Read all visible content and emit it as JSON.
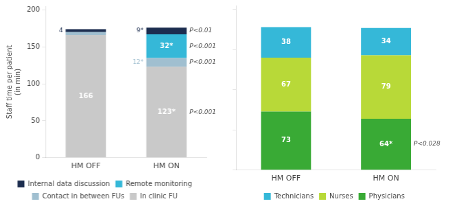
{
  "chart_data": [
    {
      "type": "bar",
      "stacked": true,
      "categories": [
        "HM OFF",
        "HM ON"
      ],
      "ylabel": "Staff time per patient\n(in min)",
      "ylim": [
        0,
        205
      ],
      "yticks": [
        0,
        50,
        100,
        150,
        200
      ],
      "grid": false,
      "legend": "bottom",
      "data_labels": true,
      "series": [
        {
          "name": "In clinic FU",
          "color": "#c9c9c9",
          "values": [
            166,
            123
          ],
          "value_labels": [
            "166",
            "123*"
          ]
        },
        {
          "name": "Contact in between FUs",
          "color": "#a0bfd0",
          "values": [
            4,
            12
          ],
          "value_labels": [
            null,
            "12*"
          ]
        },
        {
          "name": "Remote monitoring",
          "color": "#35b8d8",
          "values": [
            0,
            32
          ],
          "value_labels": [
            null,
            "32*"
          ]
        },
        {
          "name": "Internal data discussion",
          "color": "#1c2d4f",
          "values": [
            4,
            9
          ],
          "value_labels": [
            "4",
            "9*"
          ]
        }
      ],
      "annotations": [
        {
          "text": "P<0.01",
          "category": "HM ON",
          "series": "Internal data discussion"
        },
        {
          "text": "P<0.001",
          "category": "HM ON",
          "series": "Remote monitoring"
        },
        {
          "text": "P<0.001",
          "category": "HM ON",
          "series": "Contact in between FUs"
        },
        {
          "text": "P<0.001",
          "category": "HM ON",
          "series": "In clinic FU"
        }
      ]
    },
    {
      "type": "bar",
      "stacked": true,
      "categories": [
        "HM OFF",
        "HM ON"
      ],
      "ylim": [
        0,
        205
      ],
      "yticks": [
        0,
        50,
        100,
        150,
        200
      ],
      "grid": false,
      "legend": "bottom",
      "data_labels": true,
      "tick_labels": "x",
      "series": [
        {
          "name": "Physicians",
          "color": "#39aa35",
          "values": [
            73,
            64
          ],
          "value_labels": [
            "73",
            "64*"
          ]
        },
        {
          "name": "Nurses",
          "color": "#b8d938",
          "values": [
            67,
            79
          ]
        },
        {
          "name": "Technicians",
          "color": "#35b8d8",
          "values": [
            38,
            34
          ]
        }
      ],
      "annotations": [
        {
          "text": "P<0.028",
          "category": "HM ON",
          "series": "Physicians"
        }
      ]
    }
  ]
}
